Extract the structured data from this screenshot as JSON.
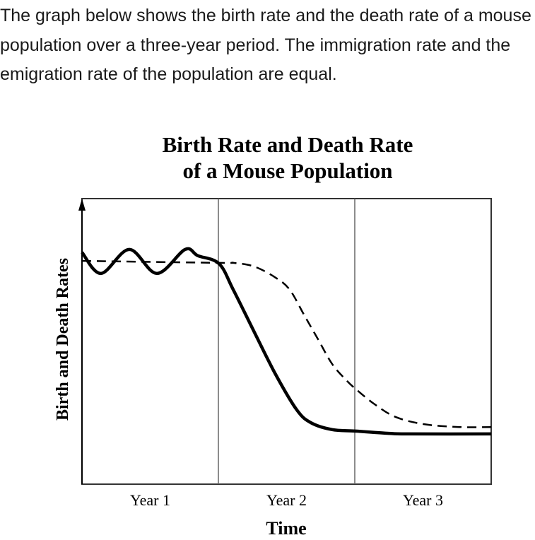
{
  "intro_text": "The graph below shows the birth rate and the death rate of a mouse population over a three-year period. The immigration rate and the emigration rate of the population are equal.",
  "chart_data": {
    "type": "line",
    "title": [
      "Birth Rate and Death Rate",
      "of a Mouse Population"
    ],
    "xlabel": "Time",
    "ylabel": "Birth and Death Rates",
    "categories": [
      "Year 1",
      "Year 2",
      "Year 3"
    ],
    "xlim": [
      0,
      3
    ],
    "ylim": [
      0,
      1
    ],
    "year_dividers": [
      1,
      2
    ],
    "grid": false,
    "legend": "none",
    "series": [
      {
        "style": "solid",
        "color": "#000000",
        "x": [
          0,
          0.14,
          0.347,
          0.549,
          0.756,
          0.85,
          1.005,
          1.109,
          1.264,
          1.42,
          1.575,
          1.679,
          1.834,
          2.005,
          2.249,
          2.404,
          3.0
        ],
        "y": [
          0.812,
          0.738,
          0.822,
          0.738,
          0.822,
          0.8,
          0.772,
          0.681,
          0.532,
          0.384,
          0.26,
          0.215,
          0.191,
          0.186,
          0.178,
          0.176,
          0.176
        ]
      },
      {
        "style": "dashed",
        "color": "#000000",
        "x": [
          0,
          1.005,
          1.109,
          1.264,
          1.42,
          1.523,
          1.627,
          1.731,
          1.834,
          1.938,
          2.005,
          2.145,
          2.301,
          2.508,
          2.767,
          3.0
        ],
        "y": [
          0.782,
          0.775,
          0.775,
          0.762,
          0.723,
          0.681,
          0.594,
          0.507,
          0.421,
          0.364,
          0.334,
          0.28,
          0.235,
          0.21,
          0.2,
          0.2
        ]
      }
    ]
  }
}
